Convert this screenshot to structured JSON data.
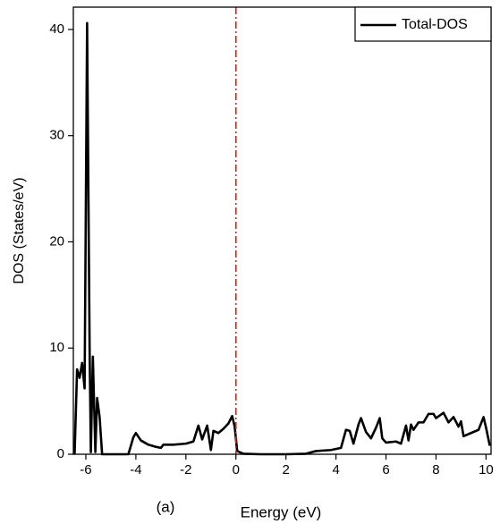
{
  "chart_data": {
    "type": "line",
    "xlabel": "Energy (eV)",
    "ylabel": "DOS (States/eV)",
    "annotation": "(a)",
    "x": [
      -6.45,
      -6.35,
      -6.25,
      -6.15,
      -6.05,
      -5.95,
      -5.85,
      -5.8,
      -5.72,
      -5.62,
      -5.55,
      -5.45,
      -5.35,
      -5.0,
      -4.3,
      -4.1,
      -4.0,
      -3.8,
      -3.5,
      -3.2,
      -3.0,
      -2.9,
      -2.5,
      -2.0,
      -1.7,
      -1.5,
      -1.35,
      -1.15,
      -1.0,
      -0.9,
      -0.7,
      -0.5,
      -0.3,
      -0.15,
      -0.05,
      0.05,
      0.3,
      1,
      2,
      2.8,
      3.2,
      3.8,
      4.2,
      4.4,
      4.55,
      4.7,
      4.9,
      5.0,
      5.2,
      5.4,
      5.6,
      5.75,
      5.85,
      6.0,
      6.4,
      6.6,
      6.8,
      6.9,
      7.0,
      7.1,
      7.3,
      7.5,
      7.7,
      7.9,
      8.0,
      8.3,
      8.5,
      8.7,
      8.9,
      9.0,
      9.1,
      9.4,
      9.7,
      9.9,
      10.0,
      10.15
    ],
    "series": [
      {
        "name": "Total-DOS",
        "color": "#000000",
        "values": [
          0,
          8,
          7.2,
          8.6,
          6.2,
          40.6,
          10,
          0.2,
          9.2,
          0.2,
          5.3,
          3.5,
          0,
          0,
          0,
          1.6,
          2.0,
          1.3,
          0.9,
          0.7,
          0.6,
          0.9,
          0.9,
          1.0,
          1.2,
          2.7,
          1.4,
          2.7,
          0.4,
          2.2,
          2.0,
          2.4,
          2.9,
          3.6,
          2.6,
          0.3,
          0.05,
          0,
          0,
          0.05,
          0.3,
          0.4,
          0.6,
          2.3,
          2.2,
          1.0,
          2.8,
          3.4,
          2.1,
          1.5,
          2.5,
          3.4,
          1.5,
          1.1,
          1.2,
          1.0,
          2.7,
          1.3,
          2.8,
          2.3,
          3.0,
          3.0,
          3.8,
          3.8,
          3.4,
          3.9,
          3.0,
          3.5,
          2.6,
          3.1,
          1.7,
          2.0,
          2.3,
          3.5,
          2.5,
          0.8
        ]
      }
    ],
    "reference_line": {
      "x": 0,
      "color": "#e41a1c"
    },
    "xlim": [
      -6.5,
      10.2
    ],
    "ylim": [
      0,
      42.1
    ],
    "xticks": [
      -6,
      -4,
      -2,
      0,
      2,
      4,
      6,
      8,
      10
    ],
    "yticks": [
      0,
      10,
      20,
      30,
      40
    ],
    "legend": "upper right"
  }
}
